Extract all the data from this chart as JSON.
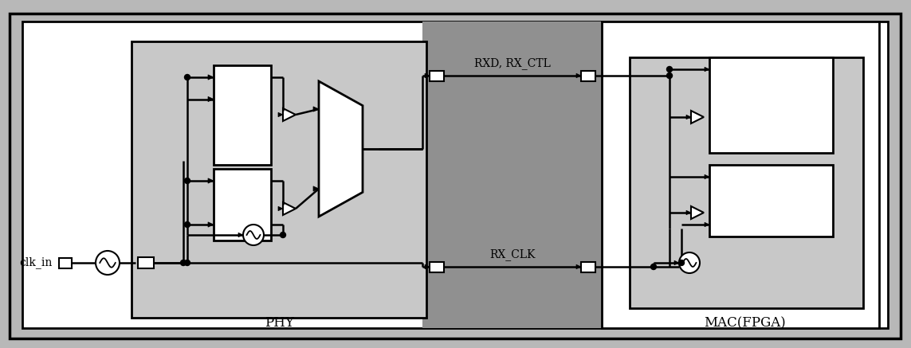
{
  "bg_outer": "#b8b8b8",
  "bg_white": "#ffffff",
  "bg_phy_inner": "#c8c8c8",
  "bg_mid_gray": "#a0a0a0",
  "bg_mac_inner": "#c8c8c8",
  "line_color": "#000000",
  "text_color": "#000000",
  "label_phy": "PHY",
  "label_mac": "MAC(FPGA)",
  "label_clk": "clk_in",
  "label_rxd": "RXD, RX_CTL",
  "label_rxclk": "RX_CLK",
  "fig_w": 11.43,
  "fig_h": 4.37
}
